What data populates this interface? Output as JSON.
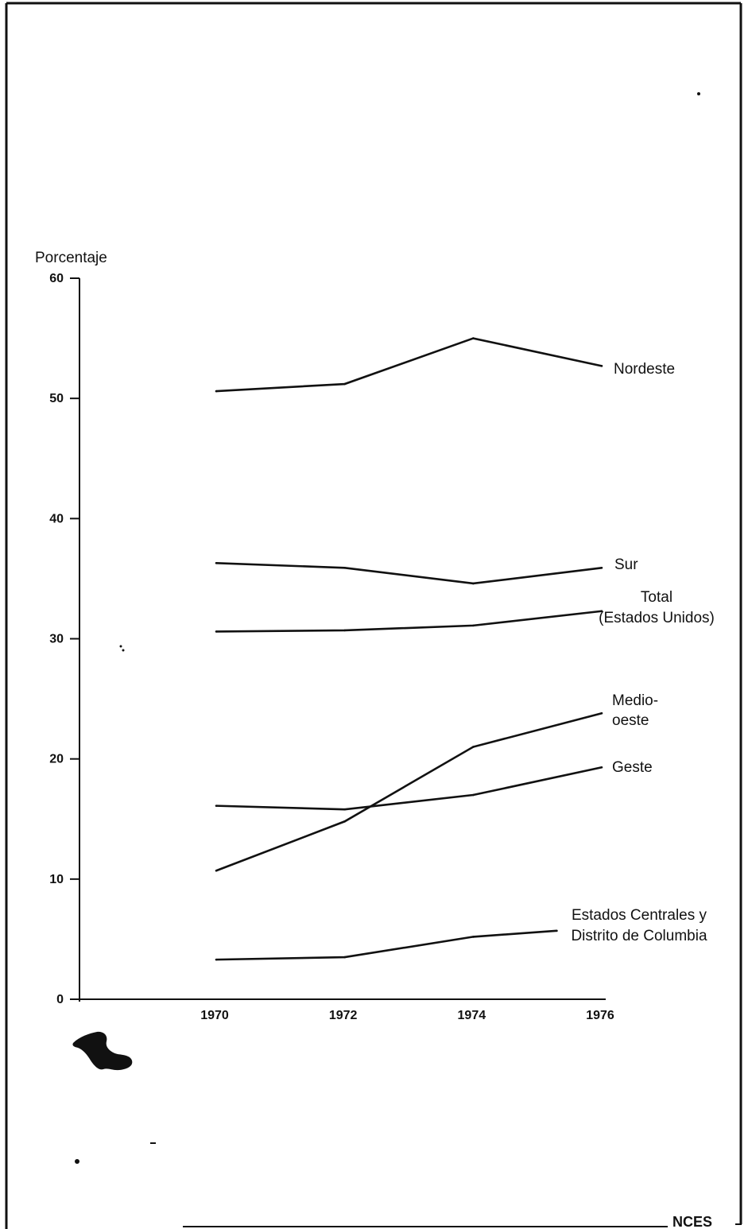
{
  "chart_data": {
    "type": "line",
    "ylabel": "Porcentaje",
    "xlabel": "",
    "ylim": [
      0,
      60
    ],
    "y_ticks": [
      0,
      10,
      20,
      30,
      40,
      50,
      60
    ],
    "x_ticks": [
      1970,
      1972,
      1974,
      1976
    ],
    "grid": false,
    "legend": "inline-right",
    "series": [
      {
        "name": "Nordeste",
        "label_lines": [
          "Nordeste"
        ],
        "x": [
          1970,
          1972,
          1974,
          1976
        ],
        "values": [
          50.6,
          51.2,
          55.0,
          52.7
        ]
      },
      {
        "name": "Sur",
        "label_lines": [
          "Sur"
        ],
        "x": [
          1970,
          1972,
          1974,
          1976
        ],
        "values": [
          36.3,
          35.9,
          34.6,
          35.9
        ]
      },
      {
        "name": "Total (Estados Unidos)",
        "label_lines": [
          "Total",
          "(Estados Unidos)"
        ],
        "x": [
          1970,
          1972,
          1974,
          1976
        ],
        "values": [
          30.6,
          30.7,
          31.1,
          32.3
        ]
      },
      {
        "name": "Medio-oeste",
        "label_lines": [
          "Medio-",
          "oeste"
        ],
        "x": [
          1970,
          1972,
          1974,
          1976
        ],
        "values": [
          10.7,
          14.8,
          21.0,
          23.8
        ]
      },
      {
        "name": "Geste",
        "label_lines": [
          "Geste"
        ],
        "x": [
          1970,
          1972,
          1974,
          1976
        ],
        "values": [
          16.1,
          15.8,
          17.0,
          19.3
        ]
      },
      {
        "name": "Estados Centrales y Distrito de Columbia",
        "label_lines": [
          "Estados Centrales y",
          "Distrito de Columbia"
        ],
        "x": [
          1970,
          1972,
          1974,
          1975.3
        ],
        "values": [
          3.3,
          3.5,
          5.2,
          5.7
        ]
      }
    ]
  },
  "footer": {
    "text": "NCES"
  }
}
